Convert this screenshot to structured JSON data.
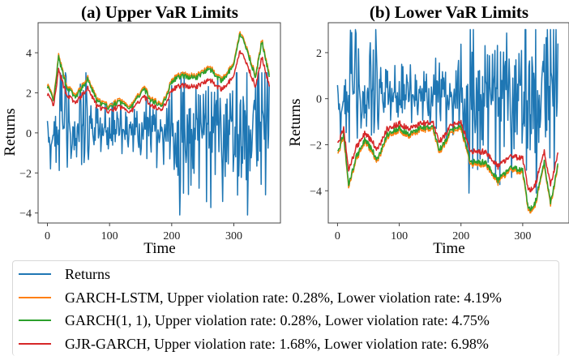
{
  "chart_data": [
    {
      "type": "line",
      "title": "(a) Upper VaR Limits",
      "xlabel": "Time",
      "ylabel": "Returns",
      "xlim": [
        -15,
        375
      ],
      "ylim": [
        -4.5,
        5.5
      ],
      "xticks": [
        0,
        100,
        200,
        300
      ],
      "yticks": [
        -4,
        -2,
        0,
        2,
        4
      ],
      "grid": false,
      "series_keys": [
        "returns",
        "garch_lstm_upper",
        "garch11_upper",
        "gjr_upper"
      ]
    },
    {
      "type": "line",
      "title": "(b) Lower VaR Limits",
      "xlabel": "Time",
      "ylabel": "Returns",
      "xlim": [
        -15,
        375
      ],
      "ylim": [
        -5.4,
        3.3
      ],
      "xticks": [
        0,
        100,
        200,
        300
      ],
      "yticks": [
        -4,
        -2,
        0,
        2
      ],
      "grid": false,
      "series_keys": [
        "returns",
        "garch_lstm_lower",
        "garch11_lower",
        "gjr_lower"
      ]
    }
  ],
  "n_points": 358,
  "series_meta": {
    "returns": {
      "name": "Returns",
      "color": "#1f77b4"
    },
    "garch_lstm": {
      "name": "GARCH-LSTM",
      "color": "#ff7f0e",
      "upper_violation_rate": "0.28%",
      "lower_violation_rate": "4.19%"
    },
    "garch11": {
      "name": "GARCH(1, 1)",
      "color": "#2ca02c",
      "upper_violation_rate": "0.28%",
      "lower_violation_rate": "4.75%"
    },
    "gjr": {
      "name": "GJR-GARCH",
      "color": "#d62728",
      "upper_violation_rate": "1.68%",
      "lower_violation_rate": "6.98%"
    }
  },
  "volatility_profile": {
    "x": [
      0,
      10,
      18,
      30,
      45,
      65,
      80,
      100,
      115,
      135,
      155,
      165,
      185,
      200,
      215,
      240,
      260,
      280,
      300,
      310,
      320,
      335,
      345,
      357
    ],
    "upper_lstm": [
      2.4,
      1.6,
      3.8,
      2.4,
      1.8,
      2.7,
      1.6,
      1.3,
      1.6,
      1.3,
      2.3,
      1.7,
      1.4,
      2.6,
      2.9,
      2.8,
      3.3,
      2.6,
      3.4,
      5.0,
      4.3,
      2.8,
      4.6,
      2.9
    ],
    "lower_lstm": [
      -2.4,
      -1.6,
      -3.8,
      -2.6,
      -1.8,
      -2.7,
      -1.6,
      -1.3,
      -1.6,
      -1.3,
      -1.3,
      -2.3,
      -1.4,
      -1.2,
      -2.8,
      -2.8,
      -3.6,
      -3.0,
      -3.2,
      -4.9,
      -4.6,
      -2.8,
      -4.6,
      -2.9
    ],
    "gjr_ratio": 0.82
  },
  "legend": {
    "items": [
      {
        "label": "Returns",
        "color": "#1f77b4"
      },
      {
        "label": "GARCH-LSTM, Upper violation rate: 0.28%, Lower violation rate: 4.19%",
        "color": "#ff7f0e"
      },
      {
        "label": "GARCH(1, 1), Upper violation rate: 0.28%, Lower violation rate: 4.75%",
        "color": "#2ca02c"
      },
      {
        "label": "GJR-GARCH, Upper violation rate: 1.68%, Lower violation rate: 6.98%",
        "color": "#d62728"
      }
    ]
  }
}
